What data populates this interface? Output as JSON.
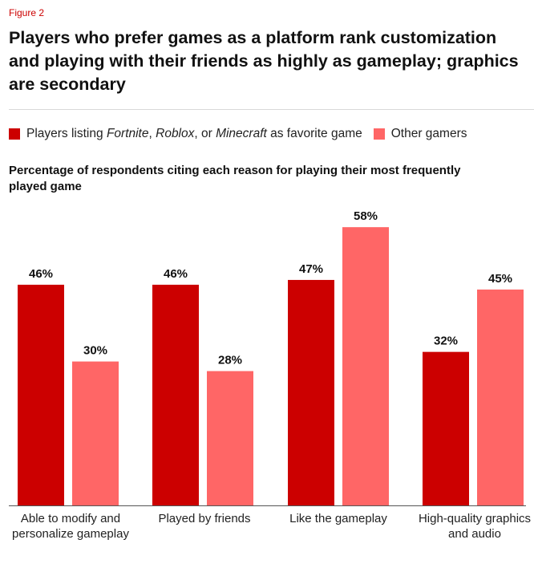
{
  "figure_label": "Figure 2",
  "colors": {
    "series1": "#cc0000",
    "series2": "#ff6666"
  },
  "legend": {
    "item1_prefix": "Players listing ",
    "item1_g1": "Fortnite",
    "item1_sep1": ", ",
    "item1_g2": "Roblox",
    "item1_sep2": ", or ",
    "item1_g3": "Minecraft",
    "item1_suffix": " as favorite game",
    "item2": "Other gamers"
  },
  "chart_data": {
    "type": "bar",
    "title": "Players who prefer games as a platform rank customization and playing with their friends as highly as gameplay; graphics are secondary",
    "subtitle": "Percentage of respondents citing each reason for playing their most frequently played game",
    "categories": [
      "Able to modify and personalize gameplay",
      "Played by friends",
      "Like the gameplay",
      "High-quality graphics and audio"
    ],
    "series": [
      {
        "name": "Players listing Fortnite, Roblox, or Minecraft as favorite game",
        "values": [
          46,
          46,
          47,
          32
        ]
      },
      {
        "name": "Other gamers",
        "values": [
          30,
          28,
          58,
          45
        ]
      }
    ],
    "value_suffix": "%",
    "ylim": [
      0,
      63
    ],
    "xlabel": "",
    "ylabel": "",
    "grid": false,
    "legend_position": "top-left"
  }
}
